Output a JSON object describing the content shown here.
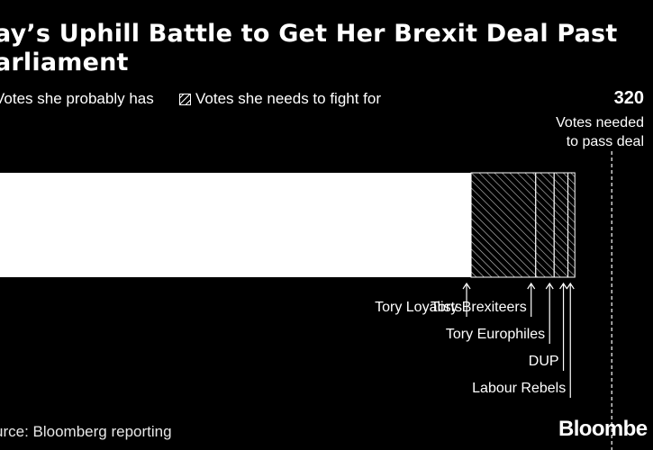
{
  "title": "ay’s Uphill Battle to Get Her Brexit Deal Past\narliament",
  "legend": {
    "probably_has": "Votes she probably has",
    "needs_to_fight": "Votes she needs to fight for"
  },
  "threshold": {
    "value": "320",
    "label": "Votes needed\nto pass deal"
  },
  "source": "urce: Bloomberg reporting",
  "brand": "Bloombe",
  "chart_data": {
    "type": "bar",
    "orientation": "horizontal-stacked",
    "categories": [
      "Tory Loyalists",
      "Tory Brexiteers",
      "Tory Europhiles",
      "DUP",
      "Labour Rebels"
    ],
    "values": [
      259,
      28,
      8,
      6,
      3
    ],
    "fill": [
      "solid",
      "hatched",
      "hatched",
      "hatched",
      "hatched"
    ],
    "threshold": 320,
    "colors": {
      "background": "#000000",
      "solid": "#ffffff",
      "hatch": "#ffffff"
    }
  }
}
